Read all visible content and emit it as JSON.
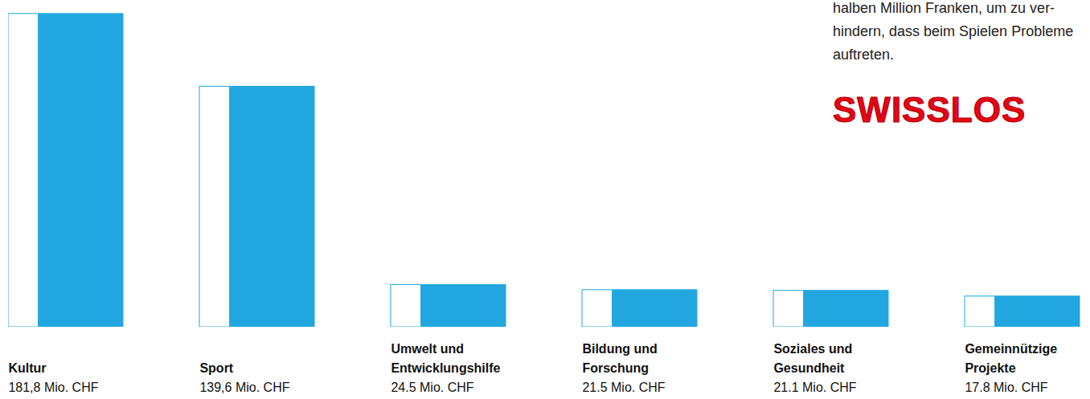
{
  "chart_data": {
    "type": "bar",
    "categories": [
      "Kultur",
      "Sport",
      "Umwelt und Entwicklungshilfe",
      "Bildung und Forschung",
      "Soziales und Gesundheit",
      "Gemeinnützige Projekte"
    ],
    "values": [
      181.8,
      139.6,
      24.5,
      21.5,
      21.1,
      17.8
    ],
    "value_labels": [
      "181,8 Mio. CHF",
      "139,6 Mio. CHF",
      "24.5 Mio. CHF",
      "21.5 Mio. CHF",
      "21.1 Mio. CHF",
      "17.8 Mio. CHF"
    ],
    "color": "#22a6e0",
    "ylim": [
      0,
      185
    ],
    "yticks": [],
    "data_labels": true,
    "tick_labels": false,
    "annotation": [
      "halben Million Franken, um zu ver-",
      "hindern, dass beim Spielen Probleme",
      "auftreten."
    ],
    "logo": "SWISSLOS"
  }
}
